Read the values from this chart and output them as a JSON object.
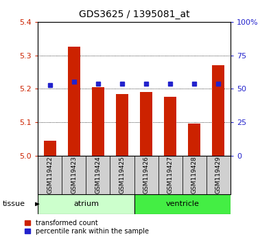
{
  "title": "GDS3625 / 1395081_at",
  "samples": [
    "GSM119422",
    "GSM119423",
    "GSM119424",
    "GSM119425",
    "GSM119426",
    "GSM119427",
    "GSM119428",
    "GSM119429"
  ],
  "transformed_counts": [
    5.045,
    5.325,
    5.205,
    5.185,
    5.19,
    5.175,
    5.095,
    5.27
  ],
  "percentile_y_values": [
    5.21,
    5.22,
    5.215,
    5.215,
    5.215,
    5.215,
    5.215,
    5.215
  ],
  "ylim_left": [
    5.0,
    5.4
  ],
  "ylim_right": [
    0,
    100
  ],
  "yticks_left": [
    5.0,
    5.1,
    5.2,
    5.3,
    5.4
  ],
  "yticks_right": [
    0,
    25,
    50,
    75,
    100
  ],
  "bar_color_red": "#cc2200",
  "marker_color_blue": "#2222cc",
  "groups": [
    {
      "label": "atrium",
      "samples": [
        0,
        1,
        2,
        3
      ],
      "color": "#ccffcc"
    },
    {
      "label": "ventricle",
      "samples": [
        4,
        5,
        6,
        7
      ],
      "color": "#44ee44"
    }
  ],
  "tissue_label": "tissue",
  "legend_red": "transformed count",
  "legend_blue": "percentile rank within the sample",
  "bg_color": "#ffffff",
  "axis_color_left": "#cc2200",
  "axis_color_right": "#2222cc",
  "bar_width": 0.5,
  "sample_box_color": "#d0d0d0",
  "sample_box_border": "#000000"
}
